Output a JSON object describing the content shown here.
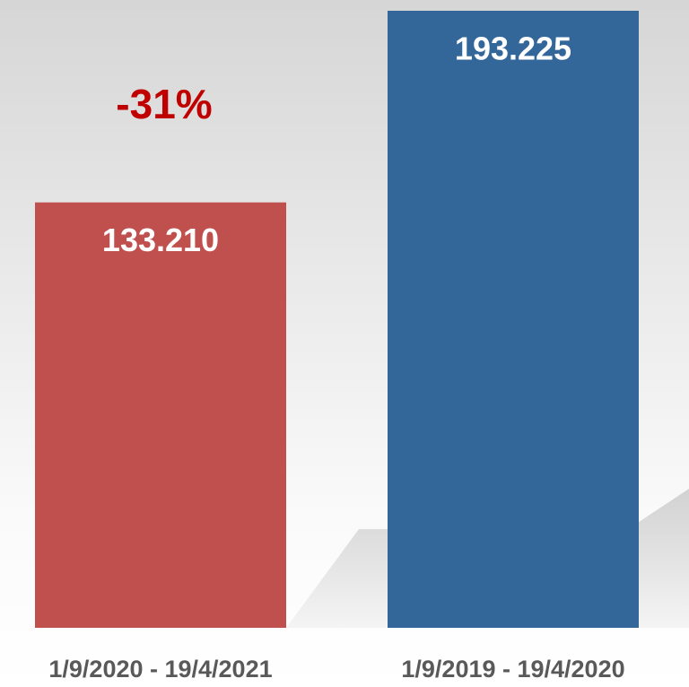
{
  "chart_data": {
    "type": "bar",
    "categories": [
      "1/9/2020 - 19/4/2021",
      "1/9/2019 - 19/4/2020"
    ],
    "values": [
      133210,
      193225
    ],
    "value_labels": [
      "133.210",
      "193.225"
    ],
    "colors": [
      "#c0504d",
      "#33679a"
    ],
    "annotation": "-31%",
    "annotation_color": "#c00000"
  }
}
